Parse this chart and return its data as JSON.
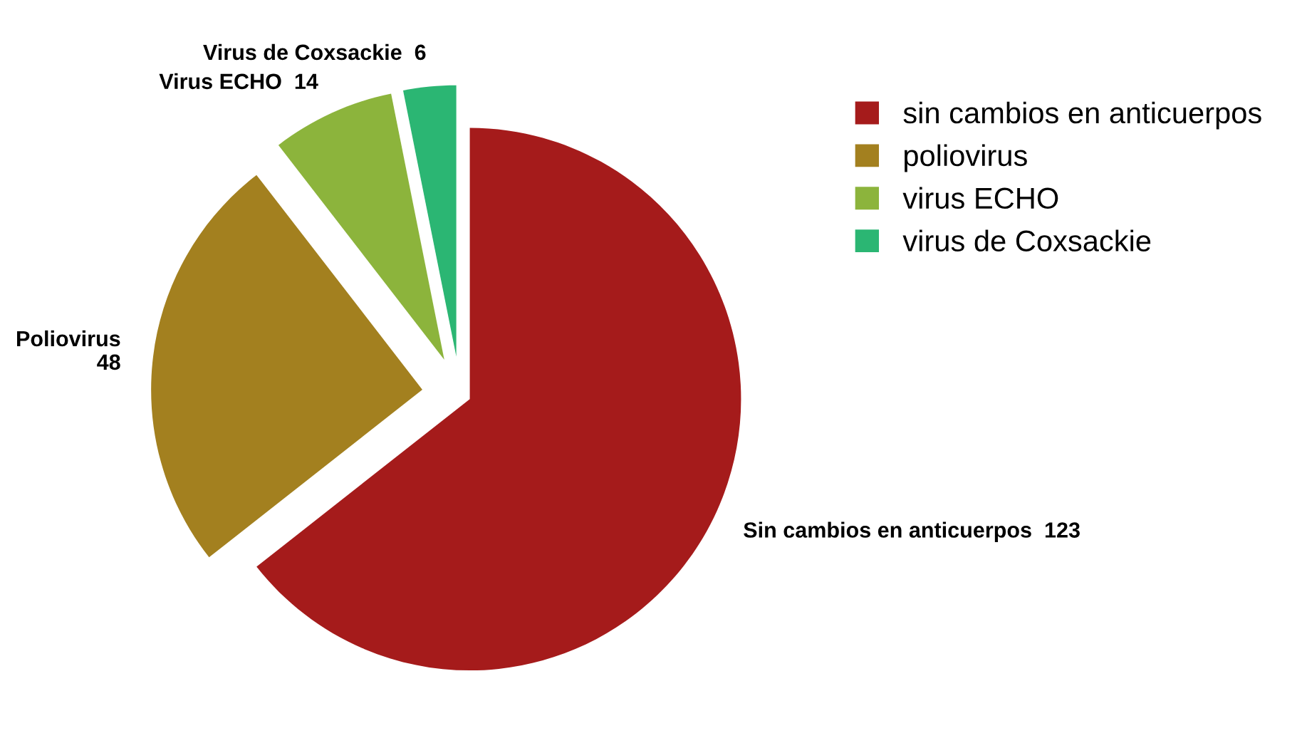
{
  "chart_data": {
    "type": "pie",
    "categories": [
      "sin cambios en anticuerpos",
      "poliovirus",
      "virus ECHO",
      "virus de Coxsackie"
    ],
    "values": [
      123,
      48,
      14,
      6
    ],
    "colors": [
      "#a51b1b",
      "#a3801f",
      "#8cb43c",
      "#2bb673"
    ],
    "value_labels": [
      "Sin cambios en anticuerpos  123",
      "Poliovirus\n48",
      "Virus ECHO  14",
      "Virus de Coxsackie  6"
    ],
    "legend": "top right"
  }
}
